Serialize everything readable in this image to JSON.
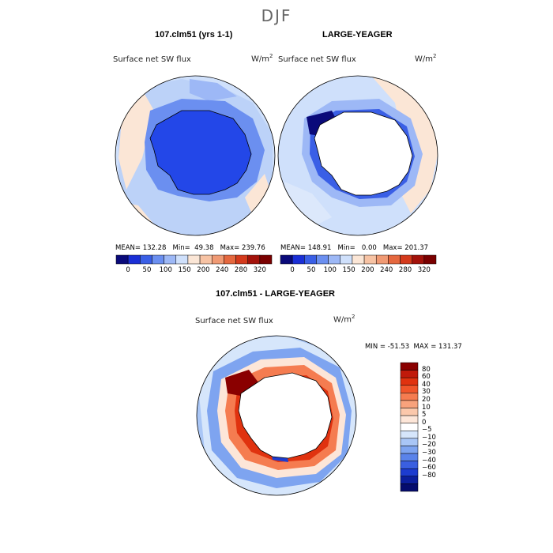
{
  "figure": {
    "title": "DJF"
  },
  "panels": [
    {
      "title": "107.clm51 (yrs 1-1)",
      "variable": "Surface net SW flux",
      "units_base": "W/m",
      "units_exp": "2",
      "stats": {
        "mean": "132.28",
        "min": "49.38",
        "max": "239.76"
      },
      "stats_text": "MEAN= 132.28   Min=  49.38   Max= 239.76"
    },
    {
      "title": "LARGE-YEAGER",
      "variable": "Surface net SW flux",
      "units_base": "W/m",
      "units_exp": "2",
      "stats": {
        "mean": "148.91",
        "min": "0.00",
        "max": "201.37"
      },
      "stats_text": "MEAN= 148.91   Min=   0.00   Max= 201.37"
    },
    {
      "title": "107.clm51 - LARGE-YEAGER",
      "variable": "Surface net SW flux",
      "units_base": "W/m",
      "units_exp": "2",
      "stats": {
        "min": "-51.53",
        "max": "131.37"
      },
      "stats_text": "MIN = -51.53  MAX = 131.37"
    }
  ],
  "colorbar_abs": {
    "ticks": [
      "0",
      "50",
      "100",
      "150",
      "200",
      "240",
      "280",
      "320"
    ],
    "colors": [
      "#0a0a7a",
      "#1a2fd6",
      "#3a5fe6",
      "#6b8ff0",
      "#9db8f6",
      "#cfe0fb",
      "#fbe6d6",
      "#f7c3a4",
      "#f09a74",
      "#e5683f",
      "#d43a1c",
      "#a3120a",
      "#7a0000"
    ]
  },
  "colorbar_diff": {
    "ticks": [
      "80",
      "60",
      "40",
      "30",
      "20",
      "10",
      "5",
      "0",
      "−5",
      "−10",
      "−20",
      "−30",
      "−40",
      "−60",
      "−80"
    ],
    "colors": [
      "#8a0000",
      "#c01a0a",
      "#e0320f",
      "#f0552a",
      "#f57c50",
      "#f8a27c",
      "#fbc8ab",
      "#fde6d8",
      "#ffffff",
      "#d6e6fb",
      "#a9c6f6",
      "#7ea4f0",
      "#5a83ea",
      "#3a5fe0",
      "#1d3cd0",
      "#0c1f9e",
      "#050c6e"
    ]
  }
}
